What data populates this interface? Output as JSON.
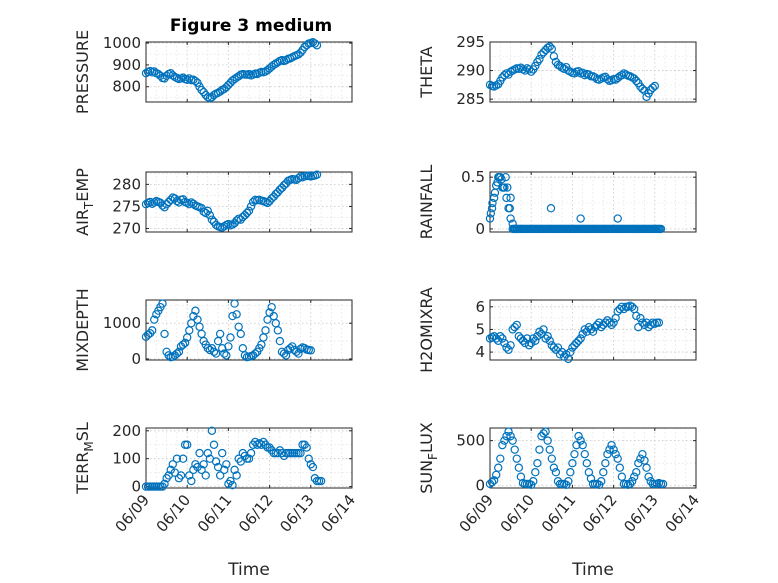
{
  "figure_title": "Figure 3 medium",
  "chart_data": [
    {
      "type": "scatter",
      "ylabel": "PRESSURE",
      "title": "Figure 3 medium",
      "xlim": [
        "06/09",
        "06/14"
      ],
      "ylim": [
        730,
        1005
      ],
      "yticks": [
        800,
        900,
        1000
      ],
      "xticklabels": [
        "06/09",
        "06/10",
        "06/11",
        "06/12",
        "06/13",
        "06/14"
      ],
      "show_xticklabels": false,
      "x": [
        0.0,
        0.05,
        0.1,
        0.15,
        0.2,
        0.25,
        0.3,
        0.35,
        0.4,
        0.45,
        0.5,
        0.55,
        0.6,
        0.65,
        0.7,
        0.75,
        0.8,
        0.85,
        0.9,
        0.95,
        1.0,
        1.05,
        1.1,
        1.15,
        1.2,
        1.25,
        1.3,
        1.35,
        1.4,
        1.45,
        1.5,
        1.55,
        1.6,
        1.65,
        1.7,
        1.75,
        1.8,
        1.85,
        1.9,
        1.95,
        2.0,
        2.05,
        2.1,
        2.15,
        2.2,
        2.25,
        2.3,
        2.35,
        2.4,
        2.45,
        2.5,
        2.55,
        2.6,
        2.65,
        2.7,
        2.75,
        2.8,
        2.85,
        2.9,
        2.95,
        3.0,
        3.05,
        3.1,
        3.15,
        3.2,
        3.25,
        3.3,
        3.35,
        3.4,
        3.45,
        3.5,
        3.55,
        3.6,
        3.65,
        3.7,
        3.75,
        3.8,
        3.85,
        3.9,
        3.95,
        4.0,
        4.05,
        4.1,
        4.15
      ],
      "y": [
        862,
        868,
        872,
        866,
        870,
        862,
        858,
        850,
        840,
        838,
        850,
        858,
        862,
        852,
        845,
        840,
        835,
        838,
        842,
        835,
        832,
        838,
        830,
        832,
        826,
        818,
        800,
        785,
        775,
        762,
        752,
        748,
        752,
        762,
        768,
        772,
        778,
        785,
        790,
        798,
        808,
        818,
        828,
        835,
        842,
        848,
        855,
        858,
        856,
        855,
        858,
        852,
        856,
        860,
        858,
        864,
        868,
        866,
        870,
        876,
        884,
        892,
        900,
        906,
        912,
        918,
        922,
        918,
        922,
        928,
        930,
        935,
        940,
        944,
        948,
        956,
        968,
        982,
        990,
        998,
        1000,
        1004,
        998,
        990
      ]
    },
    {
      "type": "scatter",
      "ylabel": "THETA",
      "xlim": [
        "06/09",
        "06/14"
      ],
      "ylim": [
        284.5,
        295
      ],
      "yticks": [
        285,
        290,
        295
      ],
      "show_xticklabels": false,
      "x": [
        0.0,
        0.05,
        0.1,
        0.15,
        0.2,
        0.25,
        0.3,
        0.35,
        0.4,
        0.45,
        0.5,
        0.55,
        0.6,
        0.65,
        0.7,
        0.75,
        0.8,
        0.85,
        0.9,
        0.95,
        1.0,
        1.05,
        1.1,
        1.15,
        1.2,
        1.25,
        1.3,
        1.35,
        1.4,
        1.45,
        1.5,
        1.55,
        1.6,
        1.65,
        1.7,
        1.75,
        1.8,
        1.85,
        1.9,
        1.95,
        2.0,
        2.05,
        2.1,
        2.15,
        2.2,
        2.25,
        2.3,
        2.35,
        2.4,
        2.45,
        2.5,
        2.55,
        2.6,
        2.65,
        2.7,
        2.75,
        2.8,
        2.85,
        2.9,
        2.95,
        3.0,
        3.05,
        3.1,
        3.15,
        3.2,
        3.25,
        3.3,
        3.35,
        3.4,
        3.45,
        3.5,
        3.55,
        3.6,
        3.65,
        3.7,
        3.75,
        3.8,
        3.85,
        3.9,
        3.95,
        4.0
      ],
      "y": [
        287.5,
        287.3,
        287.2,
        287.4,
        287.6,
        288.2,
        288.8,
        289.2,
        289.5,
        289.3,
        289.8,
        290.0,
        290.2,
        290.4,
        290.3,
        290.5,
        290.2,
        290.0,
        290.4,
        290.2,
        289.8,
        290.2,
        290.8,
        291.5,
        292.0,
        292.8,
        293.2,
        293.6,
        294.0,
        294.2,
        293.8,
        292.5,
        291.5,
        291.0,
        290.8,
        290.5,
        290.3,
        290.6,
        290.0,
        289.8,
        289.6,
        289.5,
        289.8,
        289.9,
        289.5,
        289.6,
        289.2,
        289.4,
        289.3,
        289.0,
        289.0,
        288.8,
        288.5,
        288.4,
        288.6,
        288.8,
        288.9,
        288.5,
        288.2,
        288.3,
        288.5,
        288.4,
        288.7,
        289.0,
        289.2,
        289.5,
        289.3,
        289.1,
        289.0,
        288.8,
        288.6,
        288.2,
        287.8,
        287.2,
        286.8,
        286.5,
        285.4,
        286.0,
        286.6,
        287.0,
        287.3
      ]
    },
    {
      "type": "scatter",
      "ylabel": "AIR_TEMP",
      "ylabel_display": [
        "AIR",
        "T",
        "EMP"
      ],
      "xlim": [
        "06/09",
        "06/14"
      ],
      "ylim": [
        269.2,
        282.8
      ],
      "yticks": [
        270,
        275,
        280
      ],
      "show_xticklabels": false,
      "x": [
        0.0,
        0.05,
        0.1,
        0.15,
        0.2,
        0.25,
        0.3,
        0.35,
        0.4,
        0.45,
        0.5,
        0.55,
        0.6,
        0.65,
        0.7,
        0.75,
        0.8,
        0.85,
        0.9,
        0.95,
        1.0,
        1.05,
        1.1,
        1.15,
        1.2,
        1.25,
        1.3,
        1.35,
        1.4,
        1.45,
        1.5,
        1.55,
        1.6,
        1.65,
        1.7,
        1.75,
        1.8,
        1.85,
        1.9,
        1.95,
        2.0,
        2.05,
        2.1,
        2.15,
        2.2,
        2.25,
        2.3,
        2.35,
        2.4,
        2.45,
        2.5,
        2.55,
        2.6,
        2.65,
        2.7,
        2.75,
        2.8,
        2.85,
        2.9,
        2.95,
        3.0,
        3.05,
        3.1,
        3.15,
        3.2,
        3.25,
        3.3,
        3.35,
        3.4,
        3.45,
        3.5,
        3.55,
        3.6,
        3.65,
        3.7,
        3.75,
        3.8,
        3.85,
        3.9,
        3.95,
        4.0,
        4.05,
        4.1,
        4.15
      ],
      "y": [
        275.5,
        275.8,
        276.0,
        275.6,
        275.9,
        276.2,
        276.0,
        275.8,
        275.2,
        274.8,
        275.5,
        276.0,
        276.5,
        277.0,
        276.8,
        276.2,
        275.9,
        276.5,
        276.6,
        276.0,
        275.8,
        275.5,
        275.9,
        275.6,
        275.2,
        275.0,
        274.8,
        274.6,
        273.8,
        273.5,
        274.0,
        273.0,
        272.0,
        271.5,
        270.8,
        270.5,
        270.3,
        270.2,
        270.5,
        270.8,
        271.0,
        270.7,
        270.9,
        271.2,
        271.8,
        272.2,
        272.0,
        272.6,
        273.0,
        273.5,
        274.0,
        275.0,
        276.0,
        276.5,
        276.4,
        276.5,
        276.3,
        276.2,
        276.0,
        275.8,
        276.2,
        276.8,
        277.2,
        277.8,
        278.2,
        278.8,
        279.2,
        279.8,
        280.2,
        280.8,
        281.0,
        281.2,
        281.1,
        281.0,
        281.4,
        281.8,
        281.6,
        281.8,
        282.0,
        281.9,
        281.8,
        281.9,
        282.0,
        282.2
      ]
    },
    {
      "type": "scatter",
      "ylabel": "RAINFALL",
      "xlim": [
        "06/09",
        "06/14"
      ],
      "ylim": [
        -0.03,
        0.55
      ],
      "yticks": [
        0,
        0.5
      ],
      "ytick_labels": [
        "0",
        "0.5"
      ],
      "show_xticklabels": false,
      "x": [
        0.0,
        0.05,
        0.1,
        0.15,
        0.2,
        0.25,
        0.3,
        0.35,
        0.4,
        0.45,
        0.5,
        0.55,
        0.6,
        0.65,
        0.02,
        0.06,
        0.12,
        0.18,
        0.22,
        0.28,
        0.32,
        0.38,
        0.42,
        0.5,
        0.48,
        1.48,
        2.2,
        3.1,
        4.0
      ],
      "y": [
        0.1,
        0.2,
        0.3,
        0.42,
        0.5,
        0.5,
        0.4,
        0.4,
        0.3,
        0.2,
        0.1,
        0.05,
        0.0,
        0.0,
        0.15,
        0.25,
        0.35,
        0.45,
        0.5,
        0.48,
        0.4,
        0.5,
        0.4,
        0.3,
        0.2,
        0.2,
        0.1,
        0.1,
        0.0
      ],
      "zero_run_range": [
        0.55,
        4.15
      ]
    },
    {
      "type": "scatter",
      "ylabel": "MIXDEPTH",
      "xlim": [
        "06/09",
        "06/14"
      ],
      "ylim": [
        -30,
        1650
      ],
      "yticks": [
        0,
        1000
      ],
      "show_xticklabels": false,
      "x": [
        0.0,
        0.05,
        0.1,
        0.15,
        0.2,
        0.25,
        0.3,
        0.35,
        0.4,
        0.45,
        0.5,
        0.55,
        0.6,
        0.65,
        0.7,
        0.75,
        0.8,
        0.85,
        0.9,
        0.95,
        1.0,
        1.05,
        1.1,
        1.15,
        1.2,
        1.25,
        1.3,
        1.35,
        1.4,
        1.45,
        1.5,
        1.55,
        1.6,
        1.65,
        1.7,
        1.75,
        1.8,
        1.85,
        1.9,
        1.95,
        2.0,
        2.05,
        2.1,
        2.15,
        2.2,
        2.25,
        2.3,
        2.35,
        2.4,
        2.45,
        2.5,
        2.55,
        2.6,
        2.65,
        2.7,
        2.75,
        2.8,
        2.85,
        2.9,
        2.95,
        3.0,
        3.05,
        3.1,
        3.15,
        3.2,
        3.25,
        3.3,
        3.35,
        3.4,
        3.45,
        3.5,
        3.55,
        3.6,
        3.65,
        3.7,
        3.75,
        3.8,
        3.85,
        3.9,
        3.95,
        4.0
      ],
      "y": [
        620,
        680,
        720,
        800,
        1100,
        1250,
        1350,
        1450,
        1550,
        700,
        200,
        100,
        50,
        60,
        100,
        150,
        200,
        350,
        400,
        450,
        600,
        800,
        1000,
        1200,
        1350,
        1100,
        900,
        700,
        500,
        400,
        300,
        250,
        300,
        200,
        150,
        500,
        700,
        300,
        150,
        100,
        350,
        600,
        1200,
        1550,
        1250,
        900,
        700,
        300,
        100,
        50,
        60,
        80,
        100,
        150,
        200,
        300,
        400,
        600,
        800,
        1100,
        1300,
        1450,
        1200,
        1000,
        800,
        500,
        200,
        150,
        100,
        250,
        300,
        350,
        250,
        200,
        150,
        280,
        320,
        300,
        260,
        250,
        240
      ]
    },
    {
      "type": "scatter",
      "ylabel": "H2OMIXRA",
      "xlim": [
        "06/09",
        "06/14"
      ],
      "ylim": [
        3.65,
        6.3
      ],
      "yticks": [
        4,
        5,
        6
      ],
      "show_xticklabels": false,
      "x": [
        0.0,
        0.05,
        0.1,
        0.15,
        0.2,
        0.25,
        0.3,
        0.35,
        0.4,
        0.45,
        0.5,
        0.55,
        0.6,
        0.65,
        0.7,
        0.75,
        0.8,
        0.85,
        0.9,
        0.95,
        1.0,
        1.05,
        1.1,
        1.15,
        1.2,
        1.25,
        1.3,
        1.35,
        1.4,
        1.45,
        1.5,
        1.55,
        1.6,
        1.65,
        1.7,
        1.75,
        1.8,
        1.85,
        1.9,
        1.95,
        2.0,
        2.05,
        2.1,
        2.15,
        2.2,
        2.25,
        2.3,
        2.35,
        2.4,
        2.45,
        2.5,
        2.55,
        2.6,
        2.65,
        2.7,
        2.75,
        2.8,
        2.85,
        2.9,
        2.95,
        3.0,
        3.05,
        3.1,
        3.15,
        3.2,
        3.25,
        3.3,
        3.35,
        3.4,
        3.45,
        3.5,
        3.55,
        3.6,
        3.65,
        3.7,
        3.75,
        3.8,
        3.85,
        3.9,
        3.95,
        4.0,
        4.05,
        4.1
      ],
      "y": [
        4.6,
        4.65,
        4.7,
        4.6,
        4.5,
        4.7,
        4.6,
        4.4,
        4.2,
        4.1,
        4.3,
        5.0,
        5.1,
        5.2,
        4.7,
        4.6,
        4.5,
        4.4,
        4.6,
        4.3,
        4.4,
        4.6,
        4.5,
        4.7,
        4.9,
        4.8,
        5.0,
        4.6,
        4.7,
        4.5,
        4.3,
        4.2,
        4.1,
        4.2,
        3.9,
        4.0,
        3.8,
        3.9,
        3.7,
        4.0,
        4.2,
        4.3,
        4.4,
        4.5,
        4.6,
        4.8,
        5.0,
        4.9,
        5.1,
        5.0,
        4.9,
        5.1,
        5.2,
        5.3,
        5.1,
        5.2,
        5.3,
        5.4,
        5.3,
        5.2,
        5.3,
        5.5,
        5.8,
        5.9,
        6.0,
        5.9,
        6.0,
        6.0,
        6.05,
        6.0,
        5.9,
        5.6,
        5.1,
        5.5,
        5.3,
        5.2,
        5.3,
        5.1,
        5.2,
        5.3,
        5.25,
        5.3,
        5.3
      ]
    },
    {
      "type": "scatter",
      "ylabel": "TERR_MSL",
      "ylabel_display": [
        "TERR",
        "M",
        "SL"
      ],
      "xlim": [
        "06/09",
        "06/14"
      ],
      "ylim": [
        -5,
        210
      ],
      "yticks": [
        0,
        100,
        200
      ],
      "xticklabels": [
        "06/09",
        "06/10",
        "06/11",
        "06/12",
        "06/13",
        "06/14"
      ],
      "xlabel": "Time",
      "x": [
        0.0,
        0.05,
        0.1,
        0.15,
        0.2,
        0.25,
        0.3,
        0.35,
        0.4,
        0.45,
        0.5,
        0.55,
        0.6,
        0.65,
        0.7,
        0.75,
        0.8,
        0.85,
        0.9,
        0.95,
        1.0,
        1.05,
        1.1,
        1.15,
        1.2,
        1.25,
        1.3,
        1.35,
        1.4,
        1.45,
        1.5,
        1.55,
        1.6,
        1.65,
        1.7,
        1.75,
        1.8,
        1.85,
        1.9,
        1.95,
        2.0,
        2.05,
        2.1,
        2.15,
        2.2,
        2.25,
        2.3,
        2.35,
        2.4,
        2.45,
        2.5,
        2.55,
        2.6,
        2.65,
        2.7,
        2.75,
        2.8,
        2.85,
        2.9,
        2.95,
        3.0,
        3.05,
        3.1,
        3.15,
        3.2,
        3.25,
        3.3,
        3.35,
        3.4,
        3.45,
        3.5,
        3.55,
        3.6,
        3.65,
        3.7,
        3.75,
        3.8,
        3.85,
        3.9,
        3.95,
        4.0,
        4.05,
        4.1,
        4.15,
        4.2,
        4.25
      ],
      "y": [
        0,
        0,
        0,
        0,
        0,
        0,
        0,
        0,
        0,
        10,
        30,
        40,
        60,
        80,
        50,
        100,
        30,
        40,
        100,
        150,
        150,
        40,
        20,
        60,
        80,
        70,
        120,
        60,
        80,
        40,
        120,
        100,
        200,
        150,
        90,
        70,
        40,
        120,
        60,
        80,
        10,
        20,
        5,
        60,
        40,
        100,
        90,
        120,
        110,
        100,
        100,
        120,
        150,
        160,
        150,
        155,
        150,
        160,
        150,
        140,
        140,
        130,
        120,
        120,
        120,
        130,
        120,
        110,
        120,
        120,
        120,
        120,
        120,
        120,
        120,
        120,
        150,
        150,
        140,
        100,
        80,
        70,
        30,
        20,
        20,
        20
      ]
    },
    {
      "type": "scatter",
      "ylabel": "SUN_FLUX",
      "ylabel_display": [
        "SUN",
        "F",
        "LUX"
      ],
      "xlim": [
        "06/09",
        "06/14"
      ],
      "ylim": [
        -25,
        640
      ],
      "yticks": [
        0,
        500
      ],
      "xticklabels": [
        "06/09",
        "06/10",
        "06/11",
        "06/12",
        "06/13",
        "06/14"
      ],
      "xlabel": "Time",
      "x": [
        0.0,
        0.05,
        0.1,
        0.15,
        0.2,
        0.25,
        0.3,
        0.35,
        0.4,
        0.45,
        0.5,
        0.55,
        0.6,
        0.65,
        0.7,
        0.75,
        0.8,
        0.85,
        0.9,
        0.95,
        1.0,
        1.05,
        1.1,
        1.15,
        1.2,
        1.25,
        1.3,
        1.35,
        1.4,
        1.45,
        1.5,
        1.55,
        1.6,
        1.65,
        1.7,
        1.75,
        1.8,
        1.85,
        1.9,
        1.95,
        2.0,
        2.05,
        2.1,
        2.15,
        2.2,
        2.25,
        2.3,
        2.35,
        2.4,
        2.45,
        2.5,
        2.55,
        2.6,
        2.65,
        2.7,
        2.75,
        2.8,
        2.85,
        2.9,
        2.95,
        3.0,
        3.05,
        3.1,
        3.15,
        3.2,
        3.25,
        3.3,
        3.35,
        3.4,
        3.45,
        3.5,
        3.55,
        3.6,
        3.65,
        3.7,
        3.75,
        3.8,
        3.85,
        3.9,
        3.95,
        4.0,
        4.05,
        4.1,
        4.15,
        4.2
      ],
      "y": [
        20,
        40,
        60,
        120,
        200,
        300,
        450,
        500,
        550,
        600,
        550,
        500,
        400,
        300,
        200,
        100,
        30,
        20,
        20,
        20,
        10,
        50,
        150,
        250,
        400,
        550,
        580,
        600,
        500,
        400,
        300,
        200,
        150,
        50,
        20,
        20,
        20,
        10,
        50,
        150,
        250,
        350,
        450,
        550,
        500,
        450,
        350,
        250,
        150,
        80,
        20,
        20,
        20,
        10,
        50,
        150,
        250,
        350,
        400,
        450,
        400,
        350,
        300,
        200,
        100,
        20,
        20,
        10,
        20,
        50,
        100,
        150,
        250,
        300,
        350,
        280,
        200,
        100,
        50,
        20,
        20,
        20,
        30,
        20,
        20
      ]
    }
  ]
}
